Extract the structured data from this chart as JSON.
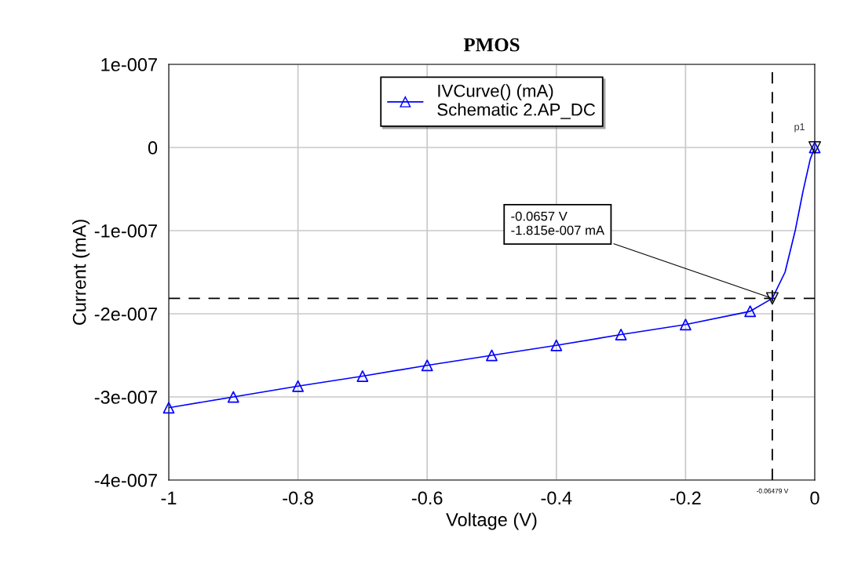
{
  "chart_data": {
    "type": "line",
    "title": "PMOS",
    "xlabel": "Voltage (V)",
    "ylabel": "Current (mA)",
    "series": [
      {
        "name": "IVCurve() (mA)\nSchematic 2.AP_DC",
        "color": "#0000ff",
        "marker": "none",
        "x": [
          -1,
          -0.9,
          -0.8,
          -0.7,
          -0.6,
          -0.5,
          -0.4,
          -0.3,
          -0.2,
          -0.1,
          -0.0657,
          -0.046,
          -0.03,
          -0.018,
          -0.007,
          0
        ],
        "values": [
          -3.13e-07,
          -3e-07,
          -2.87e-07,
          -2.75e-07,
          -2.62e-07,
          -2.5e-07,
          -2.38e-07,
          -2.25e-07,
          -2.13e-07,
          -1.97e-07,
          -1.815e-07,
          -1.5e-07,
          -9.9e-08,
          -5.2e-08,
          -1.4e-08,
          0
        ]
      },
      {
        "type": "scatter",
        "color": "#0000ff",
        "marker": "triangle",
        "x": [
          -1,
          -0.9,
          -0.8,
          -0.7,
          -0.6,
          -0.5,
          -0.4,
          -0.3,
          -0.2,
          -0.1,
          0
        ],
        "values": [
          -3.13e-07,
          -3e-07,
          -2.87e-07,
          -2.75e-07,
          -2.62e-07,
          -2.5e-07,
          -2.38e-07,
          -2.25e-07,
          -2.13e-07,
          -1.97e-07,
          0
        ]
      }
    ],
    "xlim": [
      -1,
      0
    ],
    "xticks": [
      -1,
      -0.8,
      -0.6,
      -0.4,
      -0.2,
      0
    ],
    "ylim": [
      -4e-07,
      1e-07
    ],
    "yticks": [
      {
        "value": -4e-07,
        "label": "-4e-007"
      },
      {
        "value": -3e-07,
        "label": "-3e-007"
      },
      {
        "value": -2e-07,
        "label": "-2e-007"
      },
      {
        "value": -1e-07,
        "label": "-1e-007"
      },
      {
        "value": 0,
        "label": "0"
      },
      {
        "value": 1e-07,
        "label": "1e-007"
      }
    ],
    "grid": true,
    "legend": "top center",
    "ref_lines": [
      {
        "axis": "x",
        "value": -0.0657,
        "label": "-0.06479 V",
        "color": "#000000",
        "line_style": "dashed"
      },
      {
        "axis": "y",
        "value": -1.815e-07,
        "color": "#000000",
        "line_style": "dashed"
      }
    ],
    "annotations": [
      {
        "text": "-0.0657 V\n-1.815e-007 mA",
        "x": -0.0657,
        "y": -1.815e-07
      },
      {
        "text": "p1",
        "x": 0,
        "y": 0
      }
    ]
  }
}
